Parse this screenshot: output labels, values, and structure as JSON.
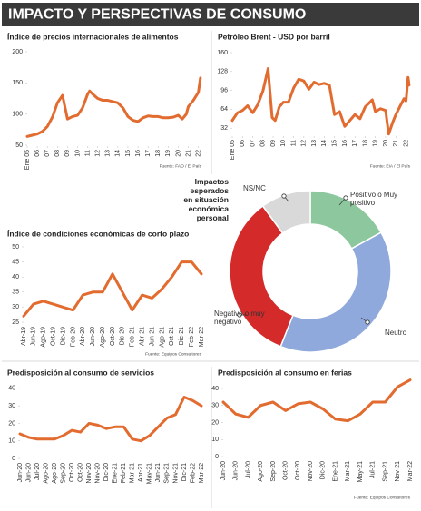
{
  "title": "IMPACTO Y PERSPECTIVAS DE CONSUMO",
  "chart_data": [
    {
      "type": "line",
      "title": "Índice de precios internacionales de alimentos",
      "color": "#e26b2f",
      "x": [
        2005,
        2005.5,
        2006,
        2006.5,
        2007,
        2007.5,
        2008,
        2008.5,
        2009,
        2009.5,
        2010,
        2010.5,
        2011,
        2011.2,
        2011.5,
        2012,
        2012.5,
        2013,
        2013.5,
        2014,
        2014.5,
        2015,
        2015.5,
        2016,
        2016.5,
        2017,
        2017.5,
        2018,
        2018.5,
        2019,
        2019.5,
        2020,
        2020.4,
        2020.8,
        2021,
        2021.5,
        2022,
        2022.2
      ],
      "values": [
        64,
        66,
        68,
        72,
        80,
        95,
        118,
        130,
        92,
        96,
        98,
        110,
        132,
        137,
        132,
        125,
        122,
        122,
        120,
        118,
        110,
        96,
        90,
        88,
        94,
        97,
        96,
        96,
        94,
        94,
        95,
        98,
        92,
        100,
        112,
        122,
        135,
        158
      ],
      "xlim": [
        2005,
        2022.3
      ],
      "ylim": [
        50,
        200
      ],
      "yticks": [
        50,
        100,
        150,
        200
      ],
      "xticks": [
        {
          "value": 2005,
          "label": "Ene 05"
        },
        {
          "value": 2006,
          "label": "06"
        },
        {
          "value": 2007,
          "label": "07"
        },
        {
          "value": 2008,
          "label": "08"
        },
        {
          "value": 2009,
          "label": "09"
        },
        {
          "value": 2010,
          "label": "10"
        },
        {
          "value": 2011,
          "label": "11"
        },
        {
          "value": 2012,
          "label": "12"
        },
        {
          "value": 2013,
          "label": "13"
        },
        {
          "value": 2014,
          "label": "14"
        },
        {
          "value": 2015,
          "label": "15"
        },
        {
          "value": 2016,
          "label": "16"
        },
        {
          "value": 2017,
          "label": "17"
        },
        {
          "value": 2018,
          "label": "18"
        },
        {
          "value": 2019,
          "label": "19"
        },
        {
          "value": 2020,
          "label": "20"
        },
        {
          "value": 2021,
          "label": "21"
        },
        {
          "value": 2022,
          "label": "22"
        }
      ],
      "source": "Fuente: FAO / El País"
    },
    {
      "type": "line",
      "title": "Petróleo Brent - USD por barril",
      "color": "#e26b2f",
      "x": [
        2005,
        2005.5,
        2006,
        2006.5,
        2007,
        2007.5,
        2008,
        2008.5,
        2008.9,
        2009.2,
        2009.6,
        2010,
        2010.5,
        2011,
        2011.5,
        2012,
        2012.5,
        2013,
        2013.5,
        2014,
        2014.5,
        2015,
        2015.5,
        2016,
        2016.5,
        2017,
        2017.5,
        2018,
        2018.7,
        2019,
        2019.5,
        2020,
        2020.3,
        2020.7,
        2021,
        2021.5,
        2021.8,
        2022,
        2022.2,
        2022.3
      ],
      "values": [
        45,
        58,
        62,
        70,
        58,
        72,
        95,
        133,
        50,
        45,
        68,
        76,
        76,
        100,
        115,
        112,
        98,
        110,
        106,
        108,
        105,
        55,
        60,
        35,
        45,
        55,
        48,
        68,
        80,
        60,
        65,
        62,
        22,
        42,
        55,
        72,
        82,
        78,
        118,
        105
      ],
      "xlim": [
        2005,
        2022.4
      ],
      "ylim": [
        20,
        160
      ],
      "yticks": [
        32,
        64,
        96,
        128,
        160
      ],
      "xticks": [
        {
          "value": 2005,
          "label": "Ene 05"
        },
        {
          "value": 2006,
          "label": "06"
        },
        {
          "value": 2007,
          "label": "07"
        },
        {
          "value": 2008,
          "label": "08"
        },
        {
          "value": 2009,
          "label": "09"
        },
        {
          "value": 2010,
          "label": "10"
        },
        {
          "value": 2011,
          "label": "11"
        },
        {
          "value": 2012,
          "label": "12"
        },
        {
          "value": 2013,
          "label": "13"
        },
        {
          "value": 2014,
          "label": "14"
        },
        {
          "value": 2015,
          "label": "15"
        },
        {
          "value": 2016,
          "label": "16"
        },
        {
          "value": 2017,
          "label": "17"
        },
        {
          "value": 2018,
          "label": "18"
        },
        {
          "value": 2019,
          "label": "19"
        },
        {
          "value": 2020,
          "label": "20"
        },
        {
          "value": 2021,
          "label": "21"
        },
        {
          "value": 2022,
          "label": "22"
        }
      ],
      "source": "Fuente: EIA / El País"
    },
    {
      "type": "line",
      "title": "Índice de condiciones económicas de corto plazo",
      "color": "#e26b2f",
      "categories": [
        "Abr-19",
        "Jun-19",
        "Ago-19",
        "Oct-19",
        "Dic-19",
        "Feb-20",
        "Abr-20",
        "Jun-20",
        "Ago-20",
        "Oct-20",
        "Dic-20",
        "Feb-21",
        "Abr-21",
        "Jun-21",
        "Ago-21",
        "Oct-21",
        "Dic-21",
        "Feb-22",
        "Mar-22"
      ],
      "values": [
        27,
        31,
        32,
        31,
        30,
        29,
        34,
        35,
        35,
        41,
        35,
        29,
        34,
        33,
        36,
        40,
        45,
        45,
        41
      ],
      "ylim": [
        25,
        50
      ],
      "yticks": [
        25,
        30,
        35,
        40,
        45,
        50
      ],
      "source": "Fuente: Equipos Consultores"
    },
    {
      "type": "pie",
      "title_lines": [
        "Impactos",
        "esperados",
        "en situación",
        "económica",
        "personal"
      ],
      "categories": [
        "Positivo o Muy positivo",
        "Neutro",
        "Negativo o muy negativo",
        "NS/NC"
      ],
      "values": [
        17,
        39,
        34,
        10
      ],
      "colors": [
        "#8dc79e",
        "#90a9dc",
        "#d42a2a",
        "#d9d9d9"
      ]
    },
    {
      "type": "line",
      "title": "Predisposición al consumo de servicios",
      "color": "#e26b2f",
      "categories": [
        "Jun-20",
        "Jun-20",
        "Jul-20",
        "Ago-20",
        "Ago-20",
        "Sep-20",
        "Oct-20",
        "Oct-20",
        "Nov-20",
        "Nov-20",
        "Dic-20",
        "Ene-21",
        "Feb-21",
        "Mar-21",
        "Abr-21",
        "May-21",
        "Jun-21",
        "Sep-21",
        "Nov-21",
        "Dic-21",
        "Feb-22",
        "Mar-22"
      ],
      "values": [
        14,
        12,
        11,
        11,
        11,
        13,
        16,
        15,
        20,
        19,
        17,
        18,
        18,
        11,
        10,
        13,
        18,
        23,
        25,
        35,
        33,
        30
      ],
      "ylim": [
        0,
        42
      ],
      "yticks": [
        0,
        10,
        20,
        30,
        40
      ]
    },
    {
      "type": "line",
      "title": "Predisposición al consumo en ferias",
      "color": "#e26b2f",
      "categories": [
        "Jun-20",
        "Jun-20",
        "Jul-20",
        "Ago-20",
        "Sep-20",
        "Oct-20",
        "Oct-20",
        "Nov-20",
        "Dic-20",
        "Ene-21",
        "Mar-21",
        "May-21",
        "Jul-21",
        "Sep-21",
        "Nov-21",
        "Mar-22"
      ],
      "values": [
        32,
        25,
        23,
        30,
        32,
        27,
        31,
        32,
        28,
        22,
        21,
        25,
        32,
        32,
        41,
        45
      ],
      "ylim": [
        0,
        48
      ],
      "yticks": [
        0,
        10,
        20,
        30,
        40
      ],
      "source": "Fuente: Equipos Consultores"
    }
  ]
}
